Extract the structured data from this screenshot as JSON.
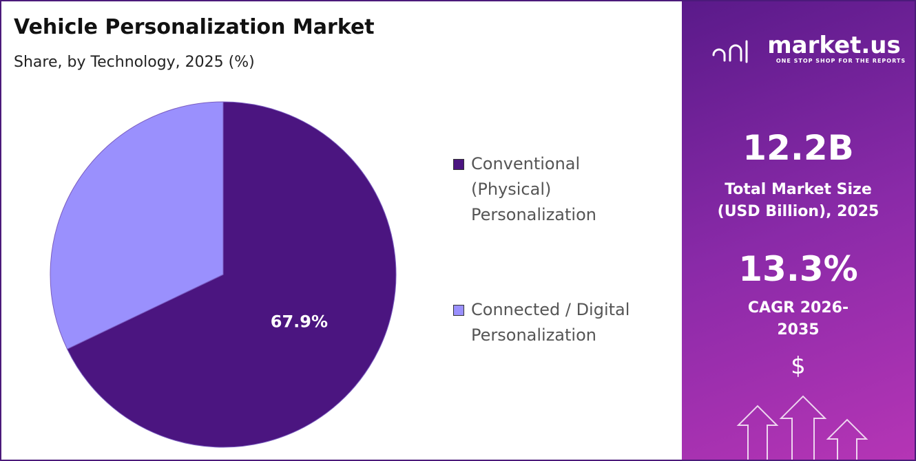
{
  "chart_data": {
    "type": "pie",
    "title": "Vehicle Personalization Market",
    "subtitle": "Share, by Technology, 2025 (%)",
    "categories": [
      "Conventional (Physical) Personalization",
      "Connected / Digital Personalization"
    ],
    "values": [
      67.9,
      32.1
    ],
    "value_labels": [
      "67.9%",
      null
    ],
    "colors": [
      "#4b1580",
      "#9a90fd"
    ],
    "start_angle": 0,
    "direction": "clockwise"
  },
  "panel": {
    "logo": "market.us",
    "tagline": "ONE STOP SHOP FOR THE REPORTS",
    "market_size": "12.2B",
    "market_size_label": "Total Market Size (USD Billion), 2025",
    "cagr": "13.3%",
    "cagr_label": "CAGR 2026-2035",
    "icon": "$"
  }
}
